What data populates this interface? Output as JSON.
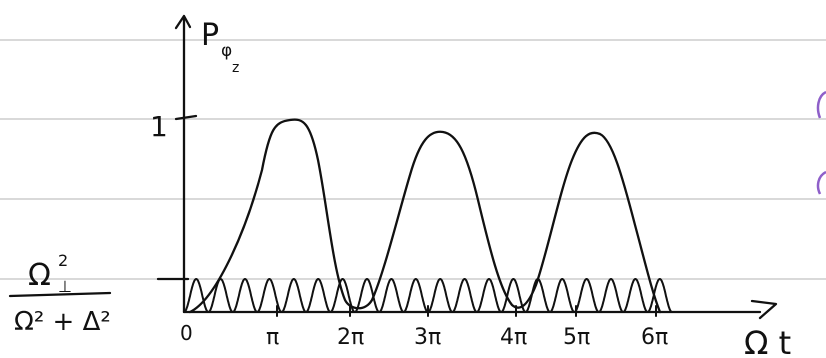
{
  "notebook": {
    "rule_color": "#d9d9d9",
    "ink_color": "#111111",
    "accent_color": "#8e5fc9"
  },
  "axes": {
    "y_label_main": "P",
    "y_label_sub": "φ",
    "y_label_subsub": "z",
    "x_label": "Ω t",
    "y_tick_one": "1"
  },
  "level_label": {
    "numerator": "Ω",
    "numerator_sup": "2",
    "numerator_sub": "⊥",
    "denominator": "Ω² + Δ²"
  },
  "x_ticks": [
    "0",
    "π",
    "2π",
    "3π",
    "4π",
    "5π",
    "6π"
  ],
  "chart_data": {
    "type": "line",
    "xlabel": "Ω t",
    "ylabel": "P",
    "x_ticks": [
      "0",
      "π",
      "2π",
      "3π",
      "4π",
      "5π",
      "6π"
    ],
    "y_ticks": [
      "1"
    ],
    "series": [
      {
        "peaks_at": [
          "π",
          "3π",
          "5π"
        ],
        "peak_values": [
          1.0,
          0.93,
          0.93
        ],
        "zeros_at": [
          "0",
          "2π",
          "4π",
          "6π"
        ]
      },
      {
        "oscillation_count": 20,
        "amplitude": 0.16
      }
    ]
  }
}
